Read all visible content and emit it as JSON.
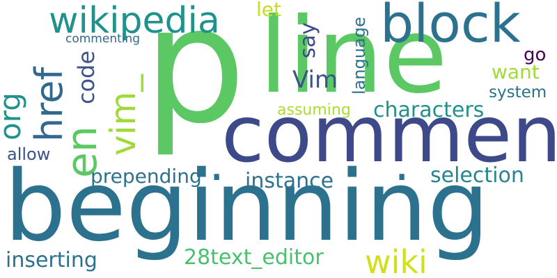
{
  "words": [
    {
      "key": "p",
      "text": "p",
      "color": "#5cc863"
    },
    {
      "key": "line",
      "text": "line",
      "color": "#5cc863"
    },
    {
      "key": "comment",
      "text": "comment",
      "color": "#3e4989"
    },
    {
      "key": "beginning",
      "text": "beginning",
      "color": "#2c728e"
    },
    {
      "key": "block",
      "text": "block",
      "color": "#2c728e"
    },
    {
      "key": "wikipedia",
      "text": "wikipedia",
      "color": "#21918c"
    },
    {
      "key": "href",
      "text": "href",
      "color": "#31688e"
    },
    {
      "key": "en",
      "text": "en",
      "color": "#5cc863"
    },
    {
      "key": "org",
      "text": "org",
      "color": "#21918c"
    },
    {
      "key": "vim_",
      "text": "vim_",
      "color": "#a0da39"
    },
    {
      "key": "code",
      "text": "code",
      "color": "#3b528b"
    },
    {
      "key": "let",
      "text": "let",
      "color": "#c2df23"
    },
    {
      "key": "say",
      "text": "say",
      "color": "#3e4989"
    },
    {
      "key": "language",
      "text": "language",
      "color": "#2c728e"
    },
    {
      "key": "commenting",
      "text": "commenting",
      "color": "#31688e"
    },
    {
      "key": "go",
      "text": "go",
      "color": "#440154"
    },
    {
      "key": "want",
      "text": "want",
      "color": "#a0da39"
    },
    {
      "key": "system",
      "text": "system",
      "color": "#2c728e"
    },
    {
      "key": "Vim",
      "text": "Vim",
      "color": "#3b528b"
    },
    {
      "key": "characters",
      "text": "characters",
      "color": "#21918c"
    },
    {
      "key": "assuming",
      "text": "assuming",
      "color": "#addc30"
    },
    {
      "key": "allow",
      "text": "allow",
      "color": "#3b528b"
    },
    {
      "key": "prepending",
      "text": "prepending",
      "color": "#2c728e"
    },
    {
      "key": "instance",
      "text": "instance",
      "color": "#2c728e"
    },
    {
      "key": "selection",
      "text": "selection",
      "color": "#25858e"
    },
    {
      "key": "inserting",
      "text": "inserting",
      "color": "#2c728e"
    },
    {
      "key": "28text_editor",
      "text": "28text_editor",
      "color": "#48c16e"
    },
    {
      "key": "wiki",
      "text": "wiki",
      "color": "#d0e11c"
    },
    {
      "key": "dot1",
      "text": ".",
      "color": "#2c728e"
    },
    {
      "key": "dot2",
      "text": ".",
      "color": "#2c728e"
    }
  ]
}
